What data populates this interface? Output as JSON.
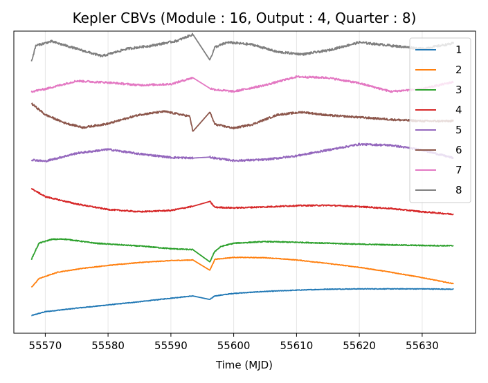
{
  "chart_data": {
    "type": "line",
    "title": "Kepler CBVs (Module : 16, Output : 4, Quarter : 8)",
    "xlabel": "Time (MJD)",
    "ylabel": "",
    "xlim": [
      55565.0,
      55638.5
    ],
    "ylim": [
      -0.5,
      8.9
    ],
    "xticks": [
      55570,
      55580,
      55590,
      55600,
      55610,
      55620,
      55630
    ],
    "grid": "vertical",
    "legend": "upper-right",
    "gap": [
      55593.5,
      55596.2
    ],
    "series": [
      {
        "name": "1",
        "color": "#1f77b4",
        "x": [
          55567.8,
          55570,
          55575,
          55580,
          55585,
          55590,
          55593.5,
          55596.2,
          55597,
          55600,
          55605,
          55610,
          55615,
          55620,
          55625,
          55630,
          55635
        ],
        "y": [
          0.05,
          0.17,
          0.28,
          0.38,
          0.48,
          0.59,
          0.66,
          0.55,
          0.66,
          0.74,
          0.8,
          0.84,
          0.87,
          0.88,
          0.88,
          0.88,
          0.87
        ],
        "noise": 0.01
      },
      {
        "name": "2",
        "color": "#ff7f0e",
        "x": [
          55567.8,
          55569,
          55572,
          55576,
          55580,
          55585,
          55590,
          55593.5,
          55596.2,
          55597,
          55600,
          55605,
          55610,
          55615,
          55620,
          55625,
          55630,
          55635
        ],
        "y": [
          0.92,
          1.2,
          1.4,
          1.52,
          1.61,
          1.7,
          1.76,
          1.78,
          1.46,
          1.8,
          1.86,
          1.85,
          1.78,
          1.67,
          1.55,
          1.4,
          1.23,
          1.04
        ],
        "noise": 0.01
      },
      {
        "name": "3",
        "color": "#2ca02c",
        "x": [
          55567.8,
          55569,
          55571,
          55573,
          55575,
          55578,
          55582,
          55586,
          55590,
          55593.5,
          55596.2,
          55597,
          55598,
          55600,
          55605,
          55610,
          55615,
          55620,
          55625,
          55630,
          55635
        ],
        "y": [
          1.8,
          2.3,
          2.42,
          2.43,
          2.38,
          2.3,
          2.25,
          2.2,
          2.13,
          2.1,
          1.72,
          2.05,
          2.2,
          2.3,
          2.35,
          2.33,
          2.3,
          2.27,
          2.25,
          2.23,
          2.22
        ],
        "noise": 0.015
      },
      {
        "name": "4",
        "color": "#d62728",
        "x": [
          55567.8,
          55570,
          55575,
          55580,
          55585,
          55590,
          55593.5,
          55596.2,
          55597,
          55600,
          55605,
          55610,
          55615,
          55620,
          55625,
          55630,
          55635
        ],
        "y": [
          4.0,
          3.75,
          3.52,
          3.35,
          3.28,
          3.32,
          3.45,
          3.6,
          3.42,
          3.4,
          3.43,
          3.47,
          3.48,
          3.44,
          3.38,
          3.28,
          3.2
        ],
        "noise": 0.02
      },
      {
        "name": "5",
        "color": "#9467bd",
        "x": [
          55567.8,
          55570,
          55575,
          55580,
          55585,
          55590,
          55593.5,
          55596.2,
          55597,
          55600,
          55605,
          55610,
          55615,
          55620,
          55625,
          55630,
          55635
        ],
        "y": [
          4.9,
          4.85,
          5.1,
          5.22,
          5.08,
          4.97,
          4.95,
          4.98,
          4.95,
          4.87,
          4.9,
          5.02,
          5.2,
          5.38,
          5.35,
          5.2,
          4.95
        ],
        "noise": 0.03
      },
      {
        "name": "6",
        "color": "#8c564b",
        "x": [
          55567.8,
          55570,
          55573,
          55576,
          55580,
          55585,
          55589,
          55593,
          55593.5,
          55596.2,
          55597,
          55600,
          55603,
          55607,
          55611,
          55615,
          55620,
          55625,
          55630,
          55635
        ],
        "y": [
          6.65,
          6.3,
          6.05,
          5.9,
          6.02,
          6.3,
          6.4,
          6.25,
          5.78,
          6.38,
          6.0,
          5.88,
          6.0,
          6.3,
          6.38,
          6.28,
          6.22,
          6.15,
          6.1,
          6.1
        ],
        "noise": 0.03
      },
      {
        "name": "7",
        "color": "#e377c2",
        "x": [
          55567.8,
          55570,
          55575,
          55580,
          55585,
          55590,
          55593.5,
          55596.2,
          55597,
          55600,
          55605,
          55610,
          55615,
          55620,
          55625,
          55630,
          55635
        ],
        "y": [
          7.02,
          7.1,
          7.35,
          7.3,
          7.22,
          7.25,
          7.45,
          7.12,
          7.08,
          7.02,
          7.22,
          7.48,
          7.45,
          7.28,
          7.02,
          7.1,
          7.32
        ],
        "noise": 0.03
      },
      {
        "name": "8",
        "color": "#7f7f7f",
        "x": [
          55567.8,
          55568.5,
          55571,
          55575,
          55579,
          55583,
          55587,
          55591,
          55593.5,
          55596.2,
          55597,
          55599,
          55603,
          55607,
          55611,
          55615,
          55620,
          55625,
          55630,
          55635
        ],
        "y": [
          7.95,
          8.45,
          8.58,
          8.35,
          8.12,
          8.35,
          8.45,
          8.6,
          8.8,
          8.0,
          8.4,
          8.55,
          8.48,
          8.25,
          8.18,
          8.3,
          8.55,
          8.45,
          8.35,
          8.52
        ],
        "noise": 0.035
      }
    ]
  }
}
